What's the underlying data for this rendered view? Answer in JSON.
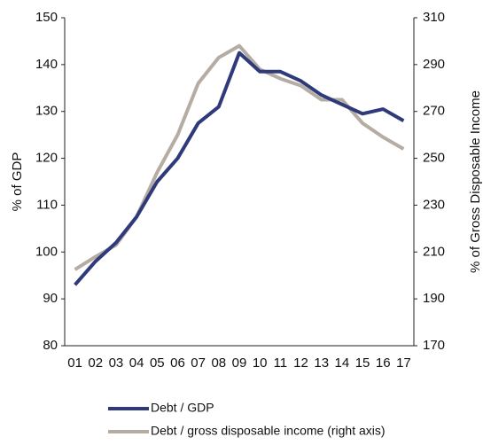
{
  "chart_data": {
    "type": "line",
    "categories": [
      "01",
      "02",
      "03",
      "04",
      "05",
      "06",
      "07",
      "08",
      "09",
      "10",
      "11",
      "12",
      "13",
      "14",
      "15",
      "16",
      "17"
    ],
    "y_label": "% of GDP",
    "y2_label": "% of Gross Disposable Income",
    "ylim": [
      80,
      150
    ],
    "yticks": [
      80,
      90,
      100,
      110,
      120,
      130,
      140,
      150
    ],
    "y2lim": [
      170,
      310
    ],
    "y2ticks": [
      170,
      190,
      210,
      230,
      250,
      270,
      290,
      310
    ],
    "series": [
      {
        "name": "Debt / GDP",
        "color": "#2e3a7a",
        "values": [
          93,
          98,
          102,
          107.5,
          115,
          120,
          127.5,
          131,
          142.5,
          138.5,
          138.5,
          136.5,
          133.5,
          131.5,
          129.5,
          130.5,
          128
        ]
      },
      {
        "name": "Debt / gross disposable income (right axis)",
        "color": "#b5aca3",
        "axis": "y2",
        "values": [
          202.5,
          208,
          213,
          225,
          244,
          260,
          282,
          293,
          298,
          288,
          284,
          281,
          275,
          275,
          265,
          259,
          254
        ]
      }
    ]
  }
}
